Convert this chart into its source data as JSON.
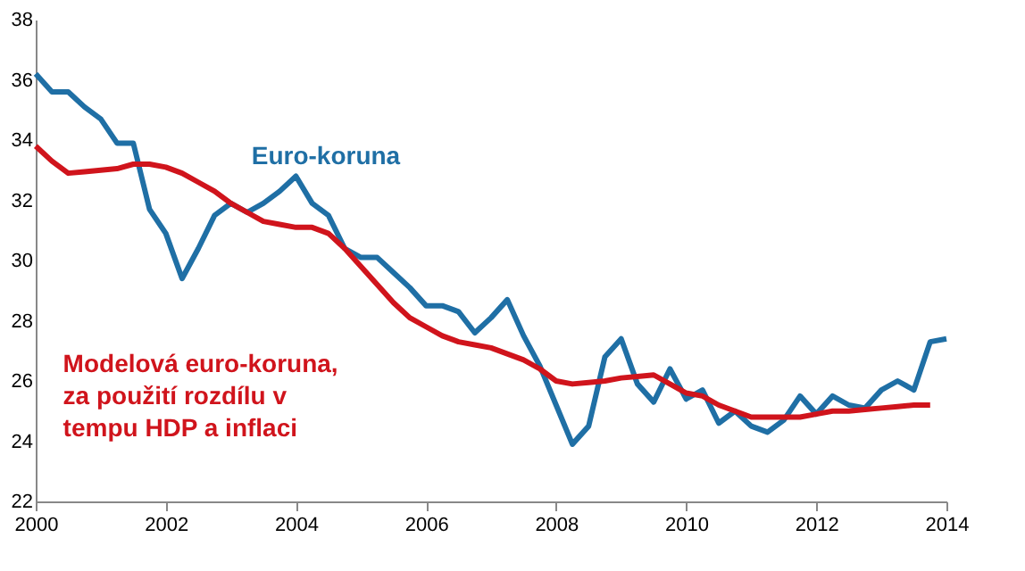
{
  "chart_data": {
    "type": "line",
    "xlim": [
      2000,
      2014
    ],
    "xticks": [
      2000,
      2002,
      2004,
      2006,
      2008,
      2010,
      2012,
      2014
    ],
    "ylim": [
      22,
      38
    ],
    "yticks": [
      22,
      24,
      26,
      28,
      30,
      32,
      34,
      36,
      38
    ],
    "grid": false,
    "legend": false,
    "marker": "none",
    "line_style": "solid",
    "series": [
      {
        "name": "Euro-koruna",
        "color": "#1f6fa5",
        "x": [
          2000,
          2000.25,
          2000.5,
          2000.75,
          2001,
          2001.25,
          2001.5,
          2001.75,
          2002,
          2002.25,
          2002.5,
          2002.75,
          2003,
          2003.25,
          2003.5,
          2003.75,
          2004,
          2004.25,
          2004.5,
          2004.75,
          2005,
          2005.25,
          2005.5,
          2005.75,
          2006,
          2006.25,
          2006.5,
          2006.75,
          2007,
          2007.25,
          2007.5,
          2007.75,
          2008,
          2008.25,
          2008.5,
          2008.75,
          2009,
          2009.25,
          2009.5,
          2009.75,
          2010,
          2010.25,
          2010.5,
          2010.75,
          2011,
          2011.25,
          2011.5,
          2011.75,
          2012,
          2012.25,
          2012.5,
          2012.75,
          2013,
          2013.25,
          2013.5,
          2013.75,
          2014
        ],
        "values": [
          36.2,
          35.6,
          35.6,
          35.1,
          34.7,
          33.9,
          33.9,
          31.7,
          30.9,
          29.4,
          30.4,
          31.5,
          31.9,
          31.6,
          31.9,
          32.3,
          32.8,
          31.9,
          31.5,
          30.4,
          30.1,
          30.1,
          29.6,
          29.1,
          28.5,
          28.5,
          28.3,
          27.6,
          28.1,
          28.7,
          27.5,
          26.5,
          25.2,
          23.9,
          24.5,
          26.8,
          27.4,
          25.9,
          25.3,
          26.4,
          25.4,
          25.7,
          24.6,
          25.0,
          24.5,
          24.3,
          24.7,
          25.5,
          24.9,
          25.5,
          25.2,
          25.1,
          25.7,
          26.0,
          25.7,
          27.3,
          27.4
        ]
      },
      {
        "name": "Modelová euro-koruna,\nza použití rozdílu v\ntempu HDP a inflaci",
        "color": "#d0141c",
        "x": [
          2000,
          2000.25,
          2000.5,
          2000.75,
          2001,
          2001.25,
          2001.5,
          2001.75,
          2002,
          2002.25,
          2002.5,
          2002.75,
          2003,
          2003.25,
          2003.5,
          2003.75,
          2004,
          2004.25,
          2004.5,
          2004.75,
          2005,
          2005.25,
          2005.5,
          2005.75,
          2006,
          2006.25,
          2006.5,
          2006.75,
          2007,
          2007.25,
          2007.5,
          2007.75,
          2008,
          2008.25,
          2008.5,
          2008.75,
          2009,
          2009.25,
          2009.5,
          2009.75,
          2010,
          2010.25,
          2010.5,
          2010.75,
          2011,
          2011.25,
          2011.5,
          2011.75,
          2012,
          2012.25,
          2012.5,
          2012.75,
          2013,
          2013.25,
          2013.5,
          2013.75
        ],
        "values": [
          33.8,
          33.3,
          32.9,
          32.95,
          33.0,
          33.05,
          33.2,
          33.2,
          33.1,
          32.9,
          32.6,
          32.3,
          31.9,
          31.6,
          31.3,
          31.2,
          31.1,
          31.1,
          30.9,
          30.4,
          29.8,
          29.2,
          28.6,
          28.1,
          27.8,
          27.5,
          27.3,
          27.2,
          27.1,
          26.9,
          26.7,
          26.4,
          26.0,
          25.9,
          25.95,
          26.0,
          26.1,
          26.15,
          26.2,
          25.9,
          25.6,
          25.5,
          25.2,
          25.0,
          24.8,
          24.8,
          24.8,
          24.8,
          24.9,
          25.0,
          25.0,
          25.05,
          25.1,
          25.15,
          25.2,
          25.2
        ]
      }
    ]
  }
}
